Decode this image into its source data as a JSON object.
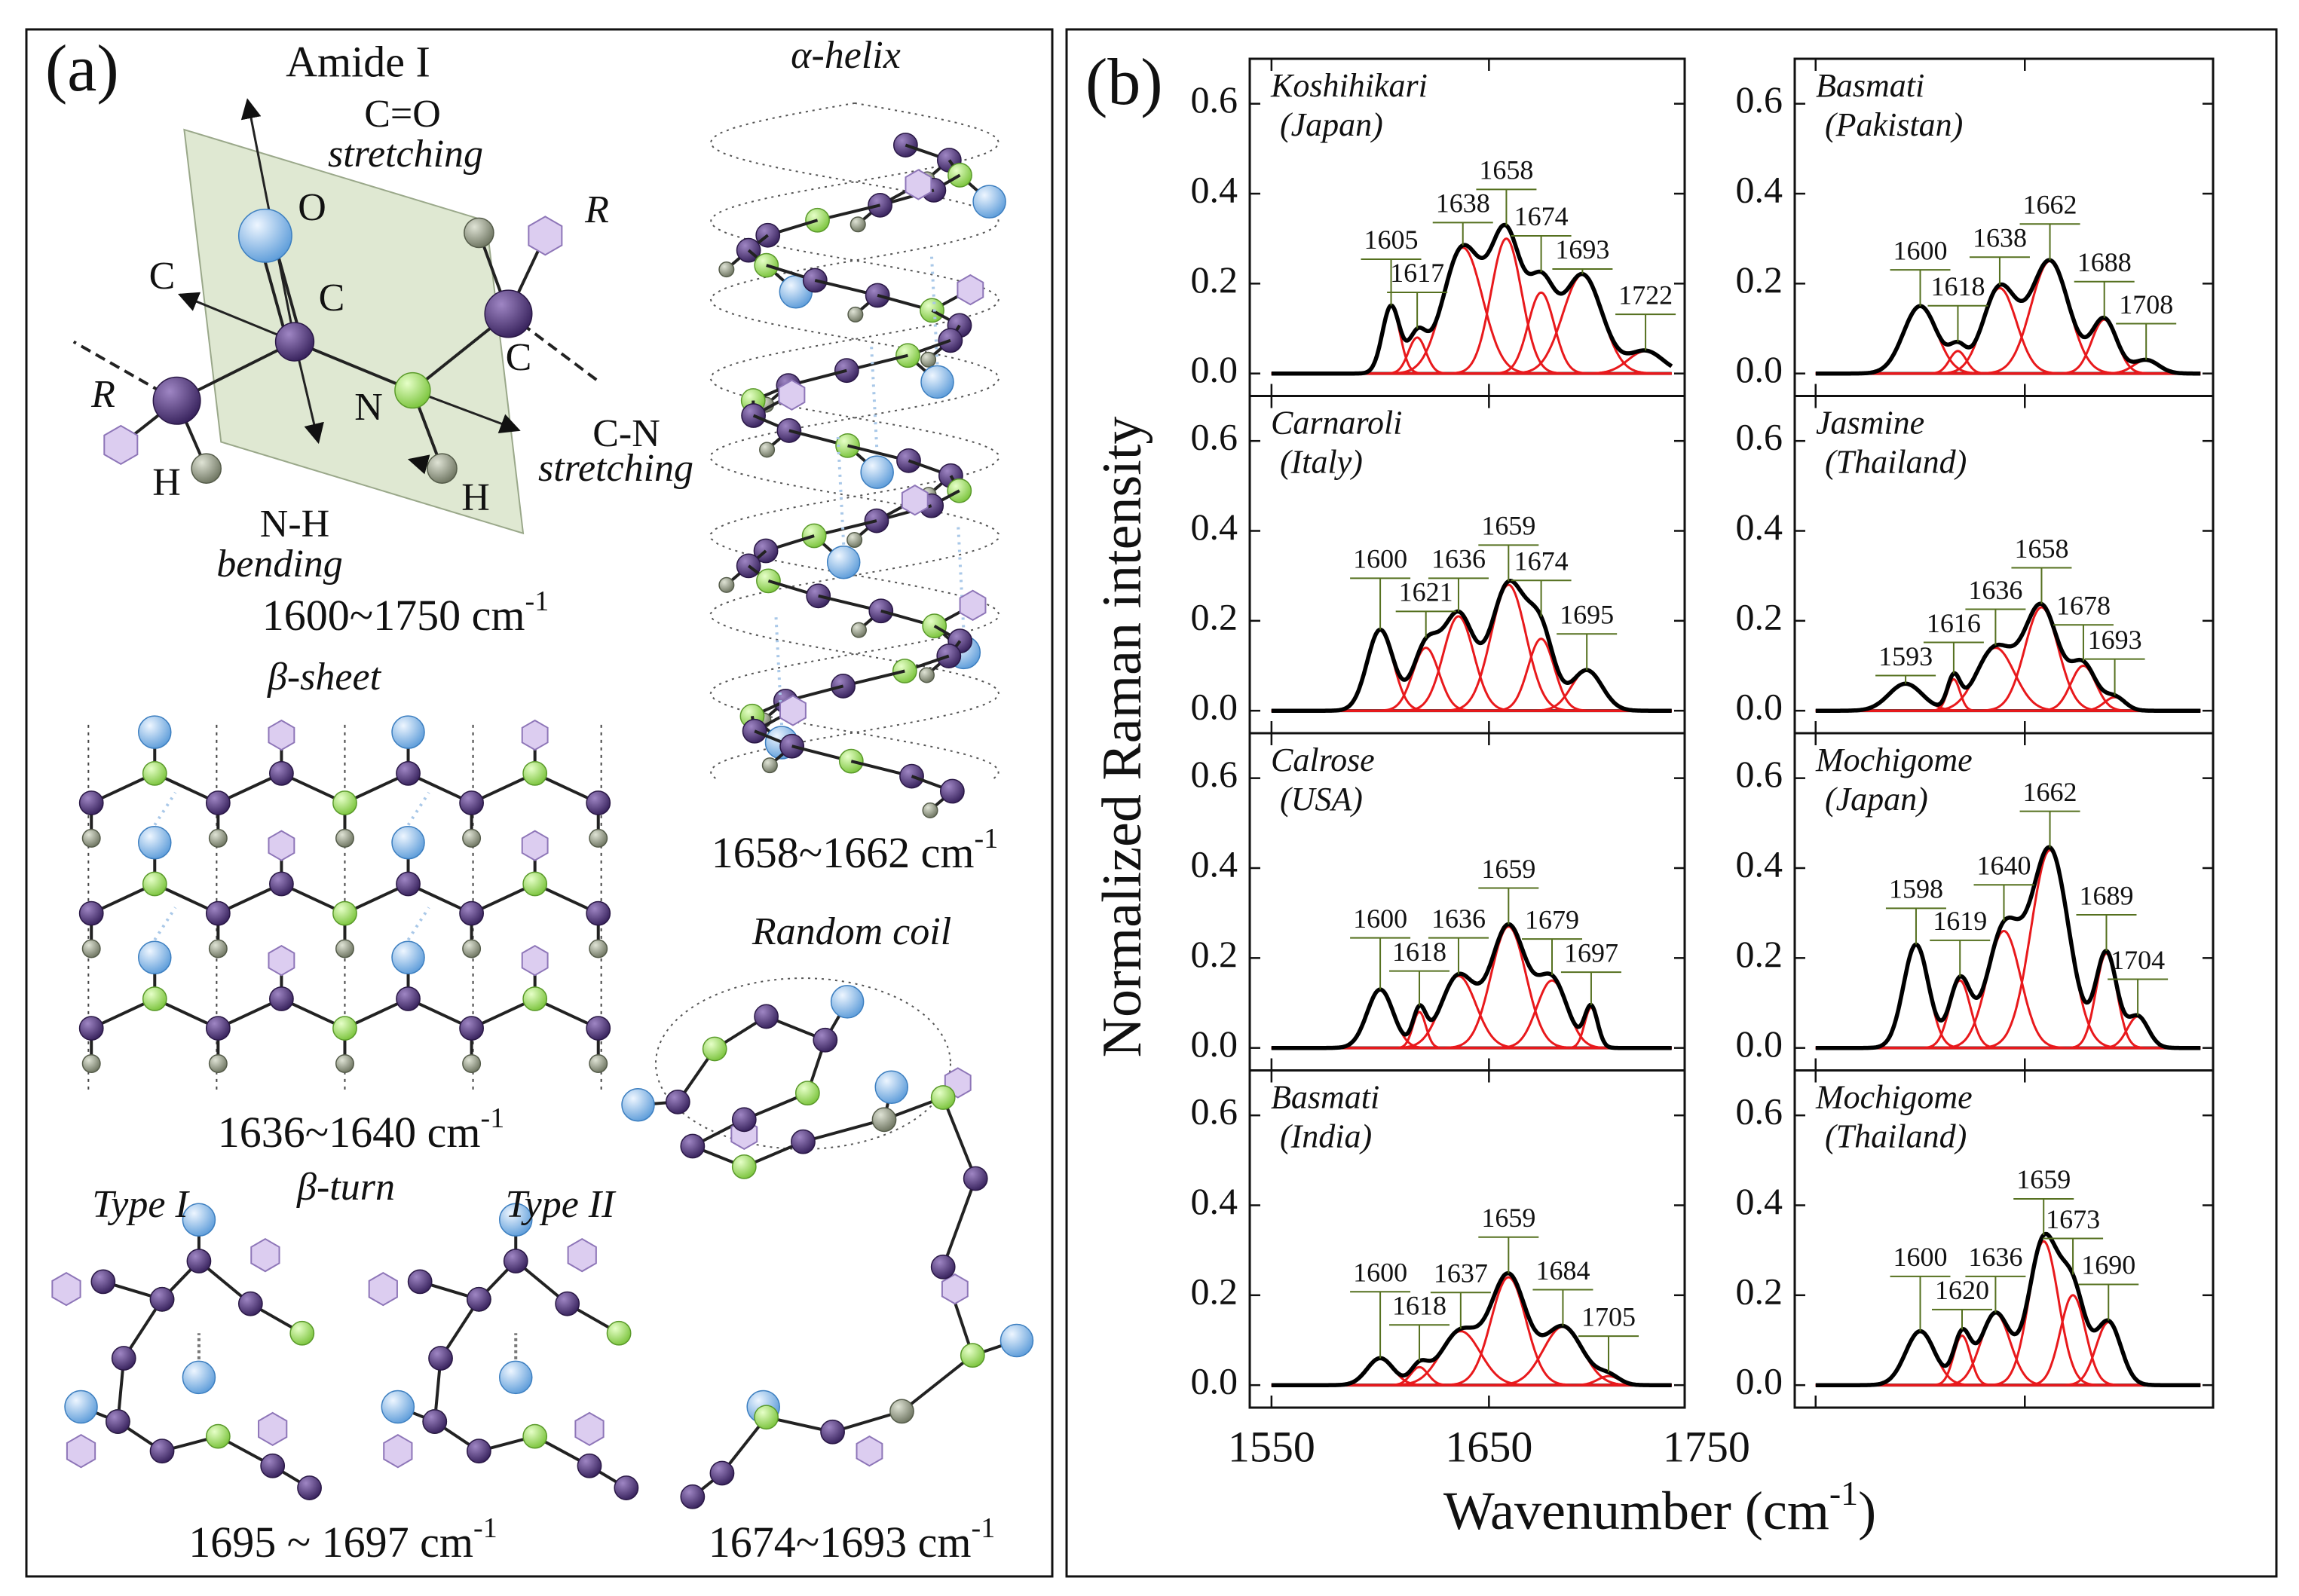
{
  "panel_a": {
    "label": "(a)",
    "amide_i": {
      "title": "Amide I",
      "co": "C=O",
      "co_mode": "stretching",
      "atoms": [
        "O",
        "C",
        "C",
        "C",
        "N",
        "H",
        "H"
      ],
      "r": [
        "R",
        "R"
      ],
      "cn": "C-N",
      "cn_mode": "stretching",
      "nh": "N-H",
      "nh_mode": "bending",
      "range": {
        "text": "1600~1750 cm",
        "sup": "-1"
      }
    },
    "beta_sheet": {
      "title": "β-sheet",
      "range": {
        "text": "1636~1640 cm",
        "sup": "-1"
      }
    },
    "beta_turn": {
      "title": "β-turn",
      "type1": "Type I",
      "type2": "Type II",
      "range": {
        "text": "1695 ~ 1697 cm",
        "sup": "-1"
      }
    },
    "alpha_helix": {
      "title": "α-helix",
      "range": {
        "text": "1658~1662 cm",
        "sup": "-1"
      }
    },
    "random_coil": {
      "title": "Random coil",
      "range": {
        "text": "1674~1693 cm",
        "sup": "-1"
      }
    }
  },
  "panel_b": {
    "label": "(b)",
    "xlabel": {
      "text": "Wavenumber (cm",
      "sup": "-1",
      "end": ")"
    },
    "ylabel": "Normalized Raman intensity",
    "xticks": [
      1550,
      1650,
      1750
    ],
    "envelope_color": "#000000",
    "component_color": "#e8191c",
    "peak_label_color": "#55701f"
  },
  "chart_data": [
    {
      "type": "line",
      "title": [
        "Koshihikari",
        "(Japan)"
      ],
      "peaks": [
        1605,
        1617,
        1638,
        1658,
        1674,
        1693,
        1722
      ],
      "heights": [
        0.15,
        0.08,
        0.28,
        0.3,
        0.18,
        0.22,
        0.05
      ],
      "widths": [
        4,
        4,
        9,
        7,
        6,
        9,
        8
      ],
      "xlim": [
        1540,
        1740
      ],
      "ylim": [
        -0.05,
        0.7
      ],
      "yticks": [
        {
          "value": 0,
          "label": "0.0"
        },
        {
          "value": 0.2,
          "label": "0.2"
        },
        {
          "value": 0.4,
          "label": "0.4"
        },
        {
          "value": 0.6,
          "label": "0.6"
        }
      ]
    },
    {
      "type": "line",
      "title": [
        "Basmati",
        "(Pakistan)"
      ],
      "peaks": [
        1600,
        1618,
        1638,
        1662,
        1688,
        1708
      ],
      "heights": [
        0.15,
        0.05,
        0.19,
        0.25,
        0.12,
        0.03
      ],
      "widths": [
        8,
        4,
        8,
        9,
        6,
        6
      ],
      "xlim": [
        1540,
        1740
      ],
      "ylim": [
        -0.05,
        0.7
      ],
      "yticks": [
        {
          "value": 0,
          "label": "0.0"
        },
        {
          "value": 0.2,
          "label": "0.2"
        },
        {
          "value": 0.4,
          "label": "0.4"
        },
        {
          "value": 0.6,
          "label": "0.6"
        }
      ]
    },
    {
      "type": "line",
      "title": [
        "Carnaroli",
        "(Italy)"
      ],
      "peaks": [
        1600,
        1621,
        1636,
        1659,
        1674,
        1695
      ],
      "heights": [
        0.18,
        0.14,
        0.21,
        0.28,
        0.16,
        0.09
      ],
      "widths": [
        6,
        6,
        7,
        8,
        6,
        7
      ],
      "xlim": [
        1540,
        1740
      ],
      "ylim": [
        -0.05,
        0.7
      ],
      "yticks": [
        {
          "value": 0,
          "label": "0.0"
        },
        {
          "value": 0.2,
          "label": "0.2"
        },
        {
          "value": 0.4,
          "label": "0.4"
        },
        {
          "value": 0.6,
          "label": "0.6"
        }
      ]
    },
    {
      "type": "line",
      "title": [
        "Jasmine",
        "(Thailand)"
      ],
      "peaks": [
        1593,
        1616,
        1636,
        1658,
        1678,
        1693
      ],
      "heights": [
        0.06,
        0.07,
        0.14,
        0.23,
        0.1,
        0.03
      ],
      "widths": [
        8,
        3,
        9,
        8,
        6,
        5
      ],
      "xlim": [
        1540,
        1740
      ],
      "ylim": [
        -0.05,
        0.7
      ],
      "yticks": [
        {
          "value": 0,
          "label": "0.0"
        },
        {
          "value": 0.2,
          "label": "0.2"
        },
        {
          "value": 0.4,
          "label": "0.4"
        },
        {
          "value": 0.6,
          "label": "0.6"
        }
      ]
    },
    {
      "type": "line",
      "title": [
        "Calrose",
        "(USA)"
      ],
      "peaks": [
        1600,
        1618,
        1636,
        1659,
        1679,
        1697
      ],
      "heights": [
        0.13,
        0.08,
        0.16,
        0.27,
        0.15,
        0.09
      ],
      "widths": [
        6,
        3,
        8,
        8,
        7,
        3
      ],
      "xlim": [
        1540,
        1740
      ],
      "ylim": [
        -0.05,
        0.7
      ],
      "yticks": [
        {
          "value": 0,
          "label": "0.0"
        },
        {
          "value": 0.2,
          "label": "0.2"
        },
        {
          "value": 0.4,
          "label": "0.4"
        },
        {
          "value": 0.6,
          "label": "0.6"
        }
      ]
    },
    {
      "type": "line",
      "title": [
        "Mochigome",
        "(Japan)"
      ],
      "peaks": [
        1598,
        1619,
        1640,
        1662,
        1689,
        1704
      ],
      "heights": [
        0.23,
        0.15,
        0.26,
        0.44,
        0.21,
        0.07
      ],
      "widths": [
        6,
        5,
        8,
        9,
        5,
        5
      ],
      "xlim": [
        1540,
        1740
      ],
      "ylim": [
        -0.05,
        0.7
      ],
      "yticks": [
        {
          "value": 0,
          "label": "0.0"
        },
        {
          "value": 0.2,
          "label": "0.2"
        },
        {
          "value": 0.4,
          "label": "0.4"
        },
        {
          "value": 0.6,
          "label": "0.6"
        }
      ]
    },
    {
      "type": "line",
      "title": [
        "Basmati",
        "(India)"
      ],
      "peaks": [
        1600,
        1618,
        1637,
        1659,
        1684,
        1705
      ],
      "heights": [
        0.06,
        0.04,
        0.12,
        0.24,
        0.13,
        0.02
      ],
      "widths": [
        6,
        4,
        9,
        8,
        9,
        5
      ],
      "xlim": [
        1540,
        1740
      ],
      "ylim": [
        -0.05,
        0.7
      ],
      "yticks": [
        {
          "value": 0,
          "label": "0.0"
        },
        {
          "value": 0.2,
          "label": "0.2"
        },
        {
          "value": 0.4,
          "label": "0.4"
        },
        {
          "value": 0.6,
          "label": "0.6"
        }
      ]
    },
    {
      "type": "line",
      "title": [
        "Mochigome",
        "(Thailand)"
      ],
      "peaks": [
        1600,
        1620,
        1636,
        1659,
        1673,
        1690
      ],
      "heights": [
        0.12,
        0.11,
        0.16,
        0.32,
        0.2,
        0.14
      ],
      "widths": [
        7,
        4,
        7,
        7,
        6,
        6
      ],
      "xlim": [
        1540,
        1740
      ],
      "ylim": [
        -0.05,
        0.7
      ],
      "yticks": [
        {
          "value": 0,
          "label": "0.0"
        },
        {
          "value": 0.2,
          "label": "0.2"
        },
        {
          "value": 0.4,
          "label": "0.4"
        },
        {
          "value": 0.6,
          "label": "0.6"
        }
      ]
    }
  ]
}
